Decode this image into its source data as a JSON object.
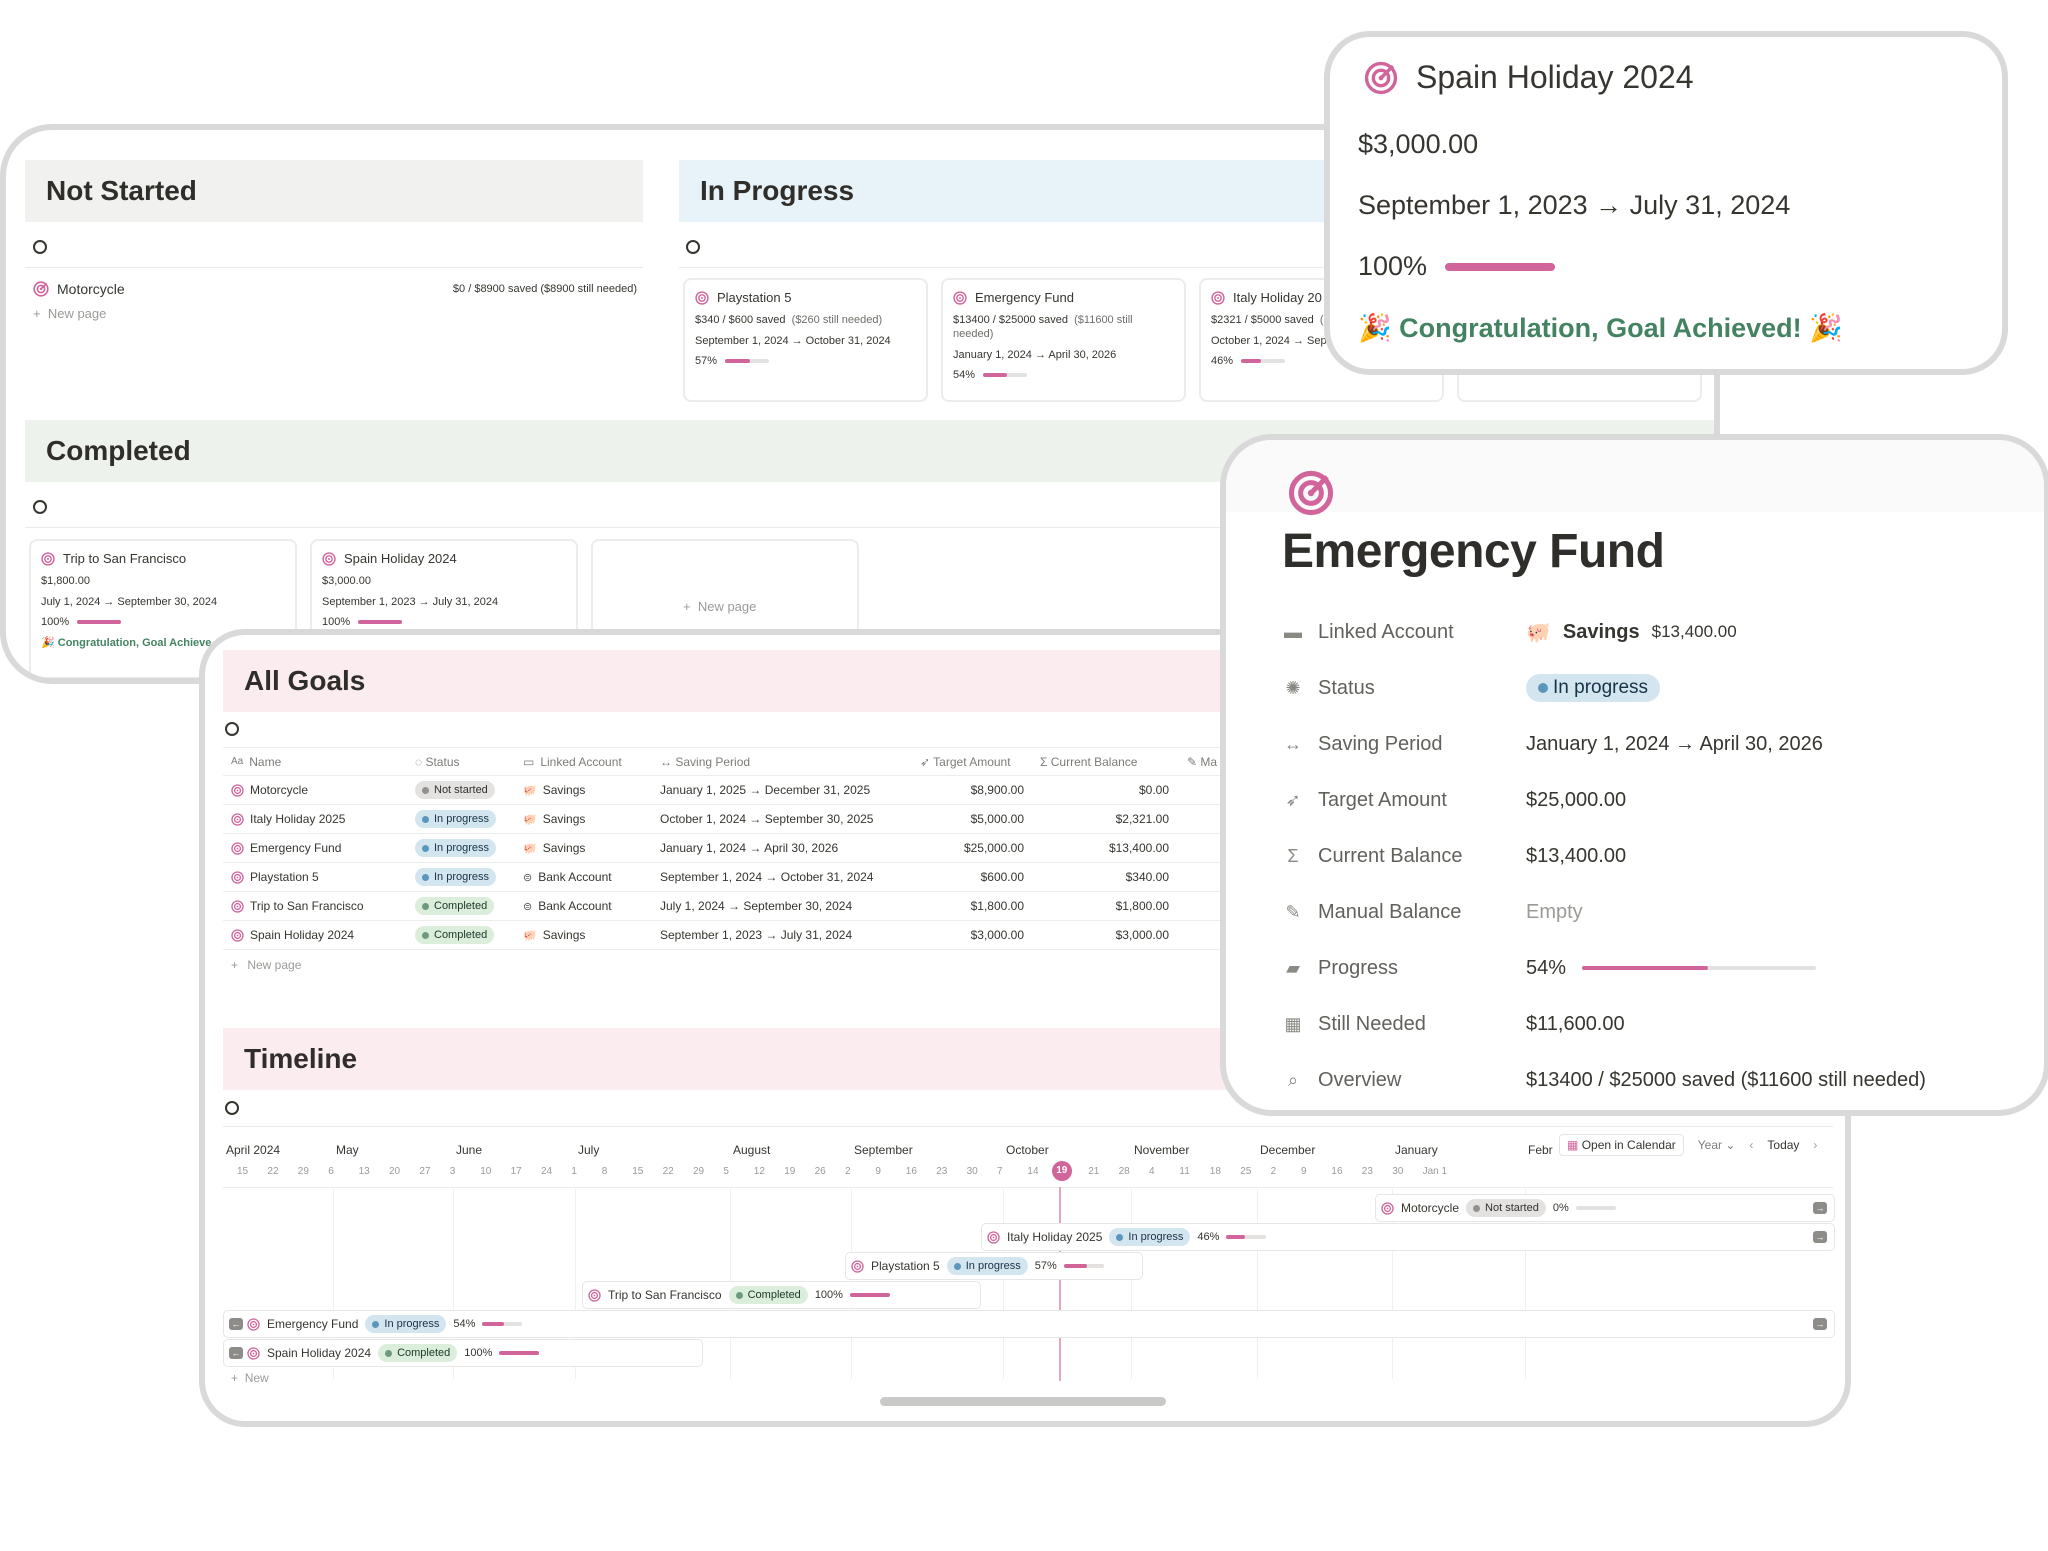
{
  "accent": "#d1649b",
  "board": {
    "groups": [
      {
        "title": "Not Started",
        "color": "#f1f1ef"
      },
      {
        "title": "In Progress",
        "color": "#e7f3f8"
      },
      {
        "title": "Completed",
        "color": "#edf3ec"
      }
    ],
    "not_started_item": {
      "name": "Motorcycle",
      "summary": "$0 / $8900 saved  ($8900 still needed)"
    },
    "new_page": "New page",
    "in_progress_cards": [
      {
        "name": "Playstation 5",
        "saved": "$340 / $600 saved",
        "needed": "($260 still needed)",
        "period": "September 1, 2024 → October 31, 2024",
        "progress_label": "57%",
        "progress": 0.57
      },
      {
        "name": "Emergency Fund",
        "saved": "$13400 / $25000 saved",
        "needed": "($11600 still",
        "needed2": "needed)",
        "period": "January 1, 2024 → April 30, 2026",
        "progress_label": "54%",
        "progress": 0.54
      },
      {
        "name": "Italy Holiday 20",
        "saved": "$2321 / $5000 saved",
        "needed": "(",
        "period": "October 1, 2024 → Sep",
        "progress_label": "46%",
        "progress": 0.46
      }
    ],
    "completed_cards": [
      {
        "name": "Trip to San Francisco",
        "amount": "$1,800.00",
        "period": "July 1, 2024 → September 30, 2024",
        "progress_label": "100%",
        "progress": 1.0,
        "congrats": "🎉 Congratulation, Goal Achieve"
      },
      {
        "name": "Spain Holiday 2024",
        "amount": "$3,000.00",
        "period": "September 1, 2023 → July 31, 2024",
        "progress_label": "100%",
        "progress": 1.0
      }
    ]
  },
  "all_goals": {
    "title": "All Goals",
    "columns": {
      "name": "Name",
      "status": "Status",
      "account": "Linked Account",
      "period": "Saving Period",
      "target": "Target Amount",
      "balance": "Current Balance",
      "manual": "Ma"
    },
    "rows": [
      {
        "name": "Motorcycle",
        "status": "Not started",
        "status_color": "grey",
        "account": "Savings",
        "account_icon": "pig-icon",
        "period": "January 1, 2025 → December 31, 2025",
        "target": "$8,900.00",
        "balance": "$0.00"
      },
      {
        "name": "Italy Holiday 2025",
        "status": "In progress",
        "status_color": "blue",
        "account": "Savings",
        "account_icon": "pig-icon",
        "period": "October 1, 2024 → September 30, 2025",
        "target": "$5,000.00",
        "balance": "$2,321.00"
      },
      {
        "name": "Emergency Fund",
        "status": "In progress",
        "status_color": "blue",
        "account": "Savings",
        "account_icon": "pig-icon",
        "period": "January 1, 2024 → April 30, 2026",
        "target": "$25,000.00",
        "balance": "$13,400.00"
      },
      {
        "name": "Playstation 5",
        "status": "In progress",
        "status_color": "blue",
        "account": "Bank Account",
        "account_icon": "bank-icon",
        "period": "September 1, 2024 → October 31, 2024",
        "target": "$600.00",
        "balance": "$340.00"
      },
      {
        "name": "Trip to San Francisco",
        "status": "Completed",
        "status_color": "green",
        "account": "Bank Account",
        "account_icon": "bank-icon",
        "period": "July 1, 2024 → September 30, 2024",
        "target": "$1,800.00",
        "balance": "$1,800.00"
      },
      {
        "name": "Spain Holiday 2024",
        "status": "Completed",
        "status_color": "green",
        "account": "Savings",
        "account_icon": "pig-icon",
        "period": "September 1, 2023 → July 31, 2024",
        "target": "$3,000.00",
        "balance": "$3,000.00"
      }
    ],
    "new_page": "New page"
  },
  "timeline": {
    "title": "Timeline",
    "months": [
      "April 2024",
      "May",
      "June",
      "July",
      "August",
      "September",
      "October",
      "November",
      "December",
      "January",
      "Febr"
    ],
    "days": [
      "15",
      "22",
      "29",
      "6",
      "13",
      "20",
      "27",
      "3",
      "10",
      "17",
      "24",
      "1",
      "8",
      "15",
      "22",
      "29",
      "5",
      "12",
      "19",
      "26",
      "2",
      "9",
      "16",
      "23",
      "30",
      "7",
      "14",
      "19",
      "21",
      "28",
      "4",
      "11",
      "18",
      "25",
      "2",
      "9",
      "16",
      "23",
      "30",
      "Jan 1"
    ],
    "today_day": "19",
    "open_calendar": "Open in Calendar",
    "scale": "Year",
    "today_button": "Today",
    "new": "New",
    "items": [
      {
        "name": "Motorcycle",
        "status": "Not started",
        "status_color": "grey",
        "progress_label": "0%",
        "progress": 0.0
      },
      {
        "name": "Italy Holiday 2025",
        "status": "In progress",
        "status_color": "blue",
        "progress_label": "46%",
        "progress": 0.46
      },
      {
        "name": "Playstation 5",
        "status": "In progress",
        "status_color": "blue",
        "progress_label": "57%",
        "progress": 0.57
      },
      {
        "name": "Trip to San Francisco",
        "status": "Completed",
        "status_color": "green",
        "progress_label": "100%",
        "progress": 1.0
      },
      {
        "name": "Emergency Fund",
        "status": "In progress",
        "status_color": "blue",
        "progress_label": "54%",
        "progress": 0.54
      },
      {
        "name": "Spain Holiday 2024",
        "status": "Completed",
        "status_color": "green",
        "progress_label": "100%",
        "progress": 1.0
      }
    ]
  },
  "spain_detail": {
    "title": "Spain Holiday 2024",
    "amount": "$3,000.00",
    "period": "September 1, 2023 → July 31, 2024",
    "progress_label": "100%",
    "progress": 1.0,
    "congrats": "🎉 Congratulation, Goal Achieved! 🎉"
  },
  "fund_detail": {
    "title": "Emergency Fund",
    "properties": [
      {
        "label": "Linked Account",
        "icon": "card-icon",
        "value": "Savings",
        "extra": "$13,400.00"
      },
      {
        "label": "Status",
        "icon": "loader-icon",
        "value": "In progress"
      },
      {
        "label": "Saving Period",
        "icon": "arrows-icon",
        "value": "January 1, 2024 → April 30, 2026"
      },
      {
        "label": "Target Amount",
        "icon": "send-icon",
        "value": "$25,000.00"
      },
      {
        "label": "Current Balance",
        "icon": "sigma-icon",
        "value": "$13,400.00"
      },
      {
        "label": "Manual Balance",
        "icon": "edit-icon",
        "value": "Empty"
      },
      {
        "label": "Progress",
        "icon": "battery-icon",
        "value": "54%",
        "progress": 0.54
      },
      {
        "label": "Still Needed",
        "icon": "calculator-icon",
        "value": "$11,600.00"
      },
      {
        "label": "Overview",
        "icon": "search-icon",
        "value": "$13400 / $25000 saved  ($11600 still needed)"
      }
    ]
  }
}
